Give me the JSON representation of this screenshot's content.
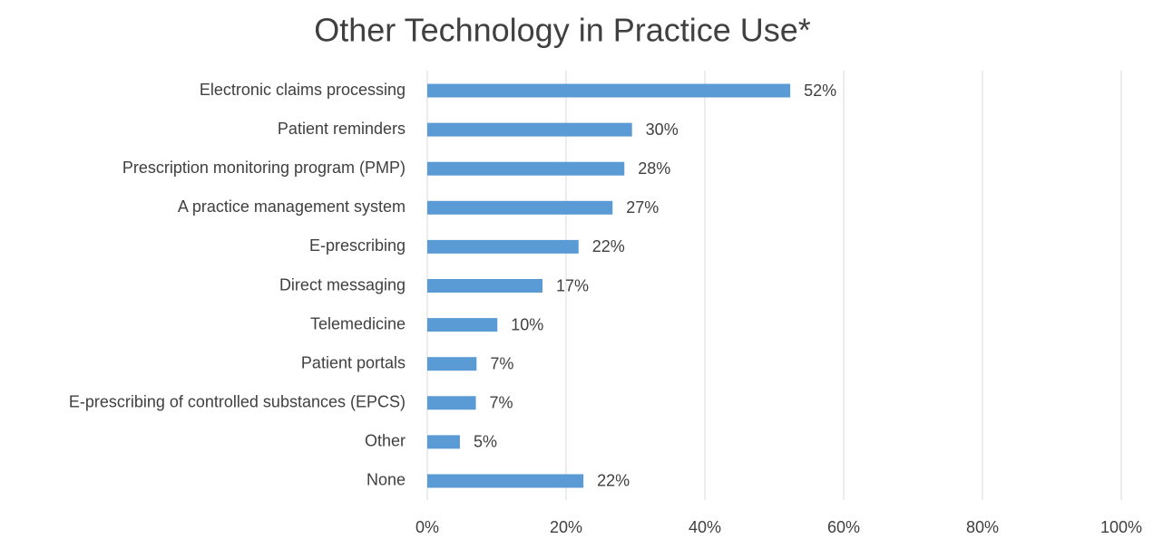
{
  "chart_data": {
    "type": "barh",
    "title": "Other Technology in Practice Use*",
    "categories": [
      "Electronic claims processing",
      "Patient reminders",
      "Prescription monitoring program (PMP)",
      "A practice management system",
      "E-prescribing",
      "Direct messaging",
      "Telemedicine",
      "Patient portals",
      "E-prescribing of controlled substances (EPCS)",
      "Other",
      "None"
    ],
    "values": [
      52.3,
      29.5,
      28.4,
      26.7,
      21.8,
      16.6,
      10.1,
      7.1,
      7.0,
      4.7,
      22.5
    ],
    "value_labels": [
      "52%",
      "30%",
      "28%",
      "27%",
      "22%",
      "17%",
      "10%",
      "7%",
      "7%",
      "5%",
      "22%"
    ],
    "color": "#5b9bd5",
    "xlim": [
      0,
      100
    ],
    "xticks": [
      {
        "value": 0,
        "label": "0%"
      },
      {
        "value": 20,
        "label": "20%"
      },
      {
        "value": 40,
        "label": "40%"
      },
      {
        "value": 60,
        "label": "60%"
      },
      {
        "value": 80,
        "label": "80%"
      },
      {
        "value": 100,
        "label": "100%"
      }
    ],
    "grid": true
  }
}
